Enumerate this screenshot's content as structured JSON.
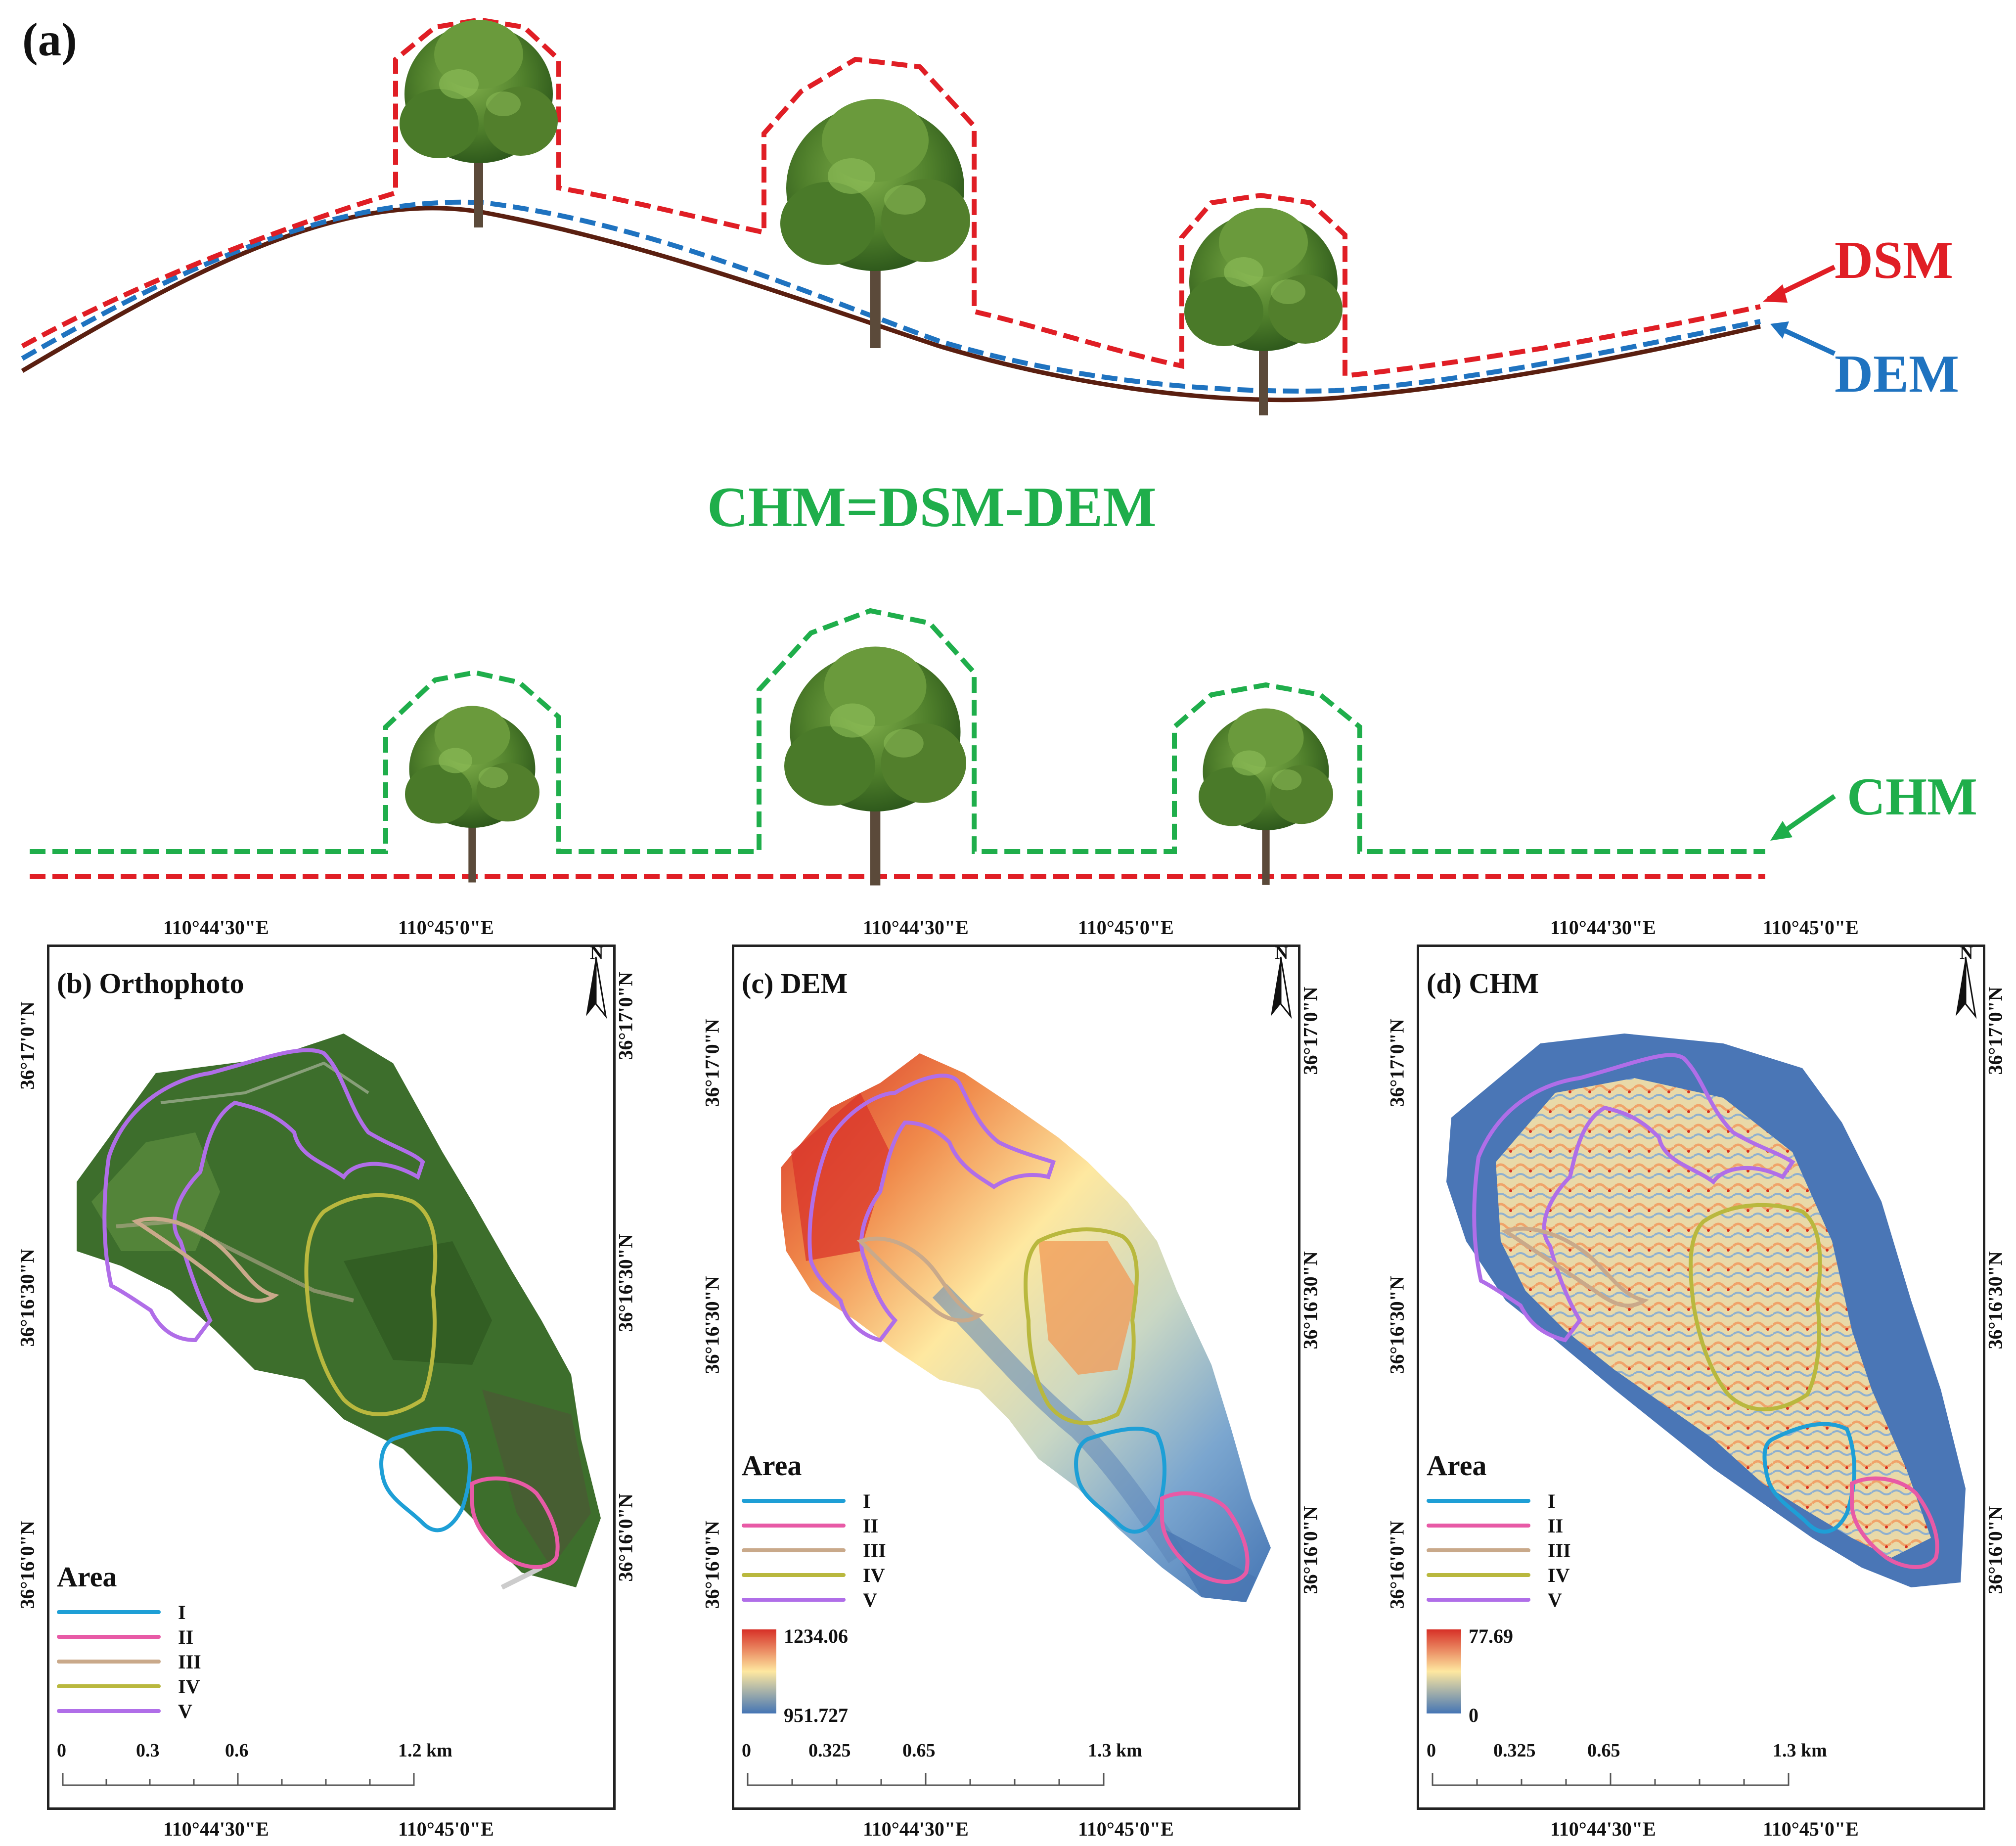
{
  "panel_a": {
    "label": "(a)",
    "dsm_label": "DSM",
    "dem_label": "DEM",
    "equation": "CHM=DSM-DEM",
    "chm_label": "CHM"
  },
  "panels": [
    {
      "id": "b",
      "title": "(b) Orthophoto",
      "top_left_lon": "110°44'30\"E",
      "top_right_lon": "110°45'0\"E",
      "bottom_left_lon": "110°44'30\"E",
      "bottom_right_lon": "110°45'0\"E",
      "left_lat_1": "36°17'0\"N",
      "left_lat_2": "36°16'30\"N",
      "left_lat_3": "36°16'0\"N",
      "right_lat_1": "36°17'0\"N",
      "right_lat_2": "36°16'30\"N",
      "right_lat_3": "36°16'0\"N",
      "scale": [
        "0",
        "0.3",
        "0.6",
        "1.2 km"
      ]
    },
    {
      "id": "c",
      "title": "(c) DEM",
      "top_left_lon": "110°44'30\"E",
      "top_right_lon": "110°45'0\"E",
      "bottom_left_lon": "110°44'30\"E",
      "bottom_right_lon": "110°45'0\"E",
      "left_lat_1": "36°17'0\"N",
      "left_lat_2": "36°16'30\"N",
      "left_lat_3": "36°16'0\"N",
      "right_lat_1": "36°17'0\"N",
      "right_lat_2": "36°16'30\"N",
      "right_lat_3": "36°16'0\"N",
      "scale": [
        "0",
        "0.325",
        "0.65",
        "1.3 km"
      ],
      "cbar_max": "1234.06",
      "cbar_min": "951.727"
    },
    {
      "id": "d",
      "title": "(d) CHM",
      "top_left_lon": "110°44'30\"E",
      "top_right_lon": "110°45'0\"E",
      "bottom_left_lon": "110°44'30\"E",
      "bottom_right_lon": "110°45'0\"E",
      "left_lat_1": "36°17'0\"N",
      "left_lat_2": "36°16'30\"N",
      "left_lat_3": "36°16'0\"N",
      "right_lat_1": "36°17'0\"N",
      "right_lat_2": "36°16'30\"N",
      "right_lat_3": "36°16'0\"N",
      "scale": [
        "0",
        "0.325",
        "0.65",
        "1.3 km"
      ],
      "cbar_max": "77.69",
      "cbar_min": "0"
    }
  ],
  "north": "N",
  "legend": {
    "title": "Area",
    "items": [
      {
        "label": "I",
        "color": "#1e9fd6"
      },
      {
        "label": "II",
        "color": "#e85aa6"
      },
      {
        "label": "III",
        "color": "#c9a98a"
      },
      {
        "label": "IV",
        "color": "#b9b83e"
      },
      {
        "label": "V",
        "color": "#b06ee8"
      }
    ]
  },
  "colors": {
    "dsm": "#e01e25",
    "dem": "#1f73c0",
    "chm": "#1fae4b",
    "ground": "#5a1f10"
  }
}
